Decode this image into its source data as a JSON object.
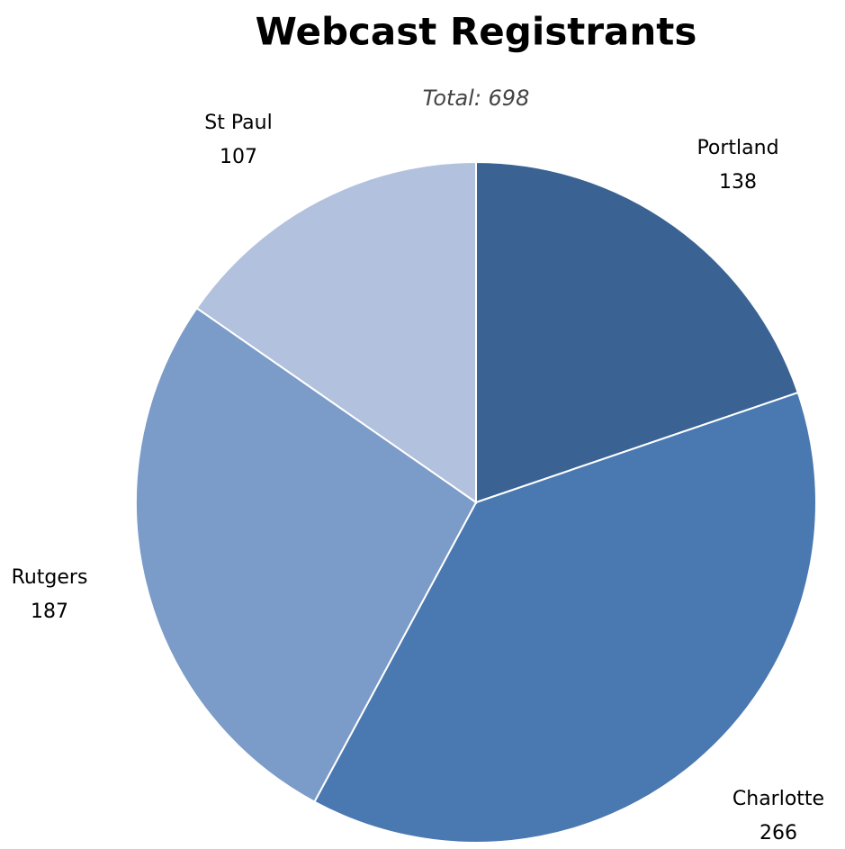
{
  "chart_data": {
    "type": "pie",
    "title": "Webcast Registrants",
    "subtitle": "Total: 698",
    "categories": [
      "Portland",
      "Charlotte",
      "Rutgers",
      "St Paul"
    ],
    "values": [
      138,
      266,
      187,
      107
    ],
    "colors": [
      "#3a6394",
      "#4a78b0",
      "#7b9bc8",
      "#b1c1de"
    ]
  }
}
